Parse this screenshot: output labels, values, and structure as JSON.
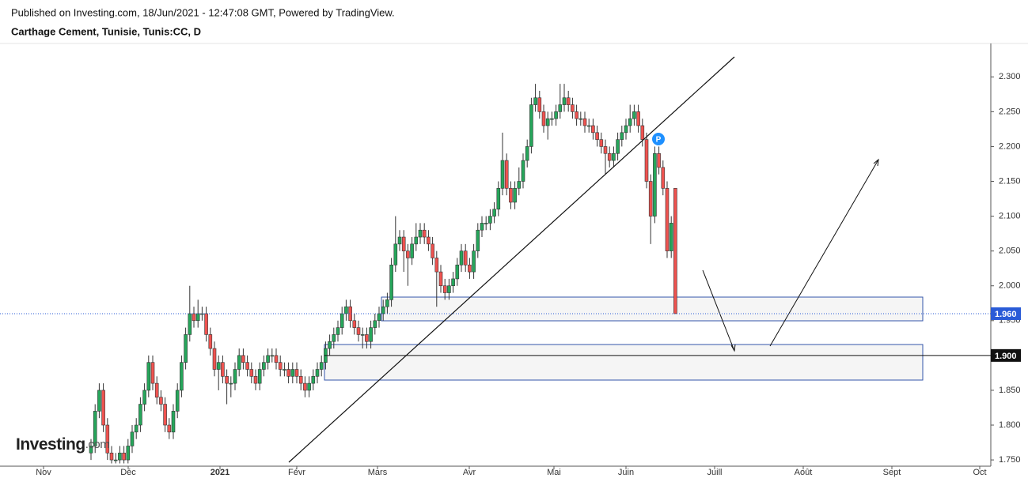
{
  "chart_data": {
    "type": "candlestick",
    "header": "Published on Investing.com, 18/Jun/2021 - 12:47:08 GMT, Powered by TradingView.",
    "title": "Carthage Cement, Tunisie, Tunis:CC, D",
    "logo": "Investing",
    "logo_suffix": ".com",
    "marker_label": "P",
    "xtick_labels": [
      "Nov",
      "Déc",
      "2021",
      "Févr",
      "Mars",
      "Avr",
      "Mai",
      "Juin",
      "Juill",
      "Août",
      "Sept",
      "Oct"
    ],
    "ylim": [
      1.741,
      2.348
    ],
    "yticks": [
      {
        "value": 1.75,
        "label": "1.750"
      },
      {
        "value": 1.8,
        "label": "1.800"
      },
      {
        "value": 1.85,
        "label": "1.850"
      },
      {
        "value": 1.9,
        "label": "1.900"
      },
      {
        "value": 1.95,
        "label": "1.950"
      },
      {
        "value": 2.0,
        "label": "2.000"
      },
      {
        "value": 2.05,
        "label": "2.050"
      },
      {
        "value": 2.1,
        "label": "2.100"
      },
      {
        "value": 2.15,
        "label": "2.150"
      },
      {
        "value": 2.2,
        "label": "2.200"
      },
      {
        "value": 2.25,
        "label": "2.250"
      },
      {
        "value": 2.3,
        "label": "2.300"
      }
    ],
    "last_price": {
      "value": 1.96,
      "label": "1.960"
    },
    "hline": {
      "value": 1.9,
      "label": "1.900"
    },
    "up_color": "#26a65b",
    "down_color": "#ef5350",
    "open": [
      1.76,
      1.77,
      1.82,
      1.85,
      1.8,
      1.76,
      1.75,
      1.75,
      1.76,
      1.75,
      1.77,
      1.79,
      1.8,
      1.83,
      1.85,
      1.89,
      1.86,
      1.84,
      1.83,
      1.8,
      1.79,
      1.82,
      1.85,
      1.89,
      1.93,
      1.96,
      1.95,
      1.96,
      1.96,
      1.93,
      1.91,
      1.88,
      1.89,
      1.87,
      1.86,
      1.86,
      1.88,
      1.9,
      1.89,
      1.88,
      1.87,
      1.86,
      1.88,
      1.89,
      1.9,
      1.9,
      1.89,
      1.88,
      1.88,
      1.87,
      1.88,
      1.87,
      1.86,
      1.85,
      1.86,
      1.87,
      1.88,
      1.89,
      1.91,
      1.92,
      1.93,
      1.94,
      1.96,
      1.97,
      1.95,
      1.94,
      1.93,
      1.93,
      1.92,
      1.94,
      1.95,
      1.96,
      1.97,
      1.98,
      2.03,
      2.06,
      2.07,
      2.05,
      2.04,
      2.06,
      2.07,
      2.08,
      2.07,
      2.06,
      2.04,
      2.02,
      2.0,
      1.99,
      2.0,
      2.01,
      2.03,
      2.05,
      2.03,
      2.02,
      2.05,
      2.08,
      2.09,
      2.09,
      2.1,
      2.11,
      2.14,
      2.18,
      2.14,
      2.12,
      2.14,
      2.15,
      2.18,
      2.2,
      2.26,
      2.27,
      2.25,
      2.23,
      2.24,
      2.24,
      2.25,
      2.26,
      2.27,
      2.26,
      2.25,
      2.24,
      2.24,
      2.23,
      2.23,
      2.22,
      2.21,
      2.2,
      2.19,
      2.18,
      2.19,
      2.21,
      2.22,
      2.23,
      2.24,
      2.25,
      2.23,
      2.21,
      2.15,
      2.1,
      2.19,
      2.17,
      2.14,
      2.05,
      2.14
    ],
    "high": [
      1.78,
      1.83,
      1.86,
      1.86,
      1.81,
      1.77,
      1.76,
      1.77,
      1.77,
      1.78,
      1.8,
      1.81,
      1.84,
      1.86,
      1.9,
      1.9,
      1.87,
      1.85,
      1.84,
      1.81,
      1.83,
      1.86,
      1.9,
      1.94,
      2.0,
      1.97,
      1.98,
      1.97,
      1.97,
      1.94,
      1.92,
      1.9,
      1.9,
      1.88,
      1.87,
      1.89,
      1.91,
      1.91,
      1.9,
      1.89,
      1.88,
      1.89,
      1.9,
      1.91,
      1.91,
      1.91,
      1.9,
      1.89,
      1.89,
      1.89,
      1.89,
      1.88,
      1.87,
      1.87,
      1.88,
      1.89,
      1.9,
      1.92,
      1.93,
      1.94,
      1.95,
      1.97,
      1.98,
      1.98,
      1.96,
      1.95,
      1.94,
      1.94,
      1.95,
      1.96,
      1.97,
      1.98,
      1.99,
      2.04,
      2.1,
      2.08,
      2.08,
      2.06,
      2.07,
      2.09,
      2.09,
      2.09,
      2.08,
      2.07,
      2.05,
      2.03,
      2.01,
      2.01,
      2.02,
      2.04,
      2.06,
      2.06,
      2.04,
      2.06,
      2.09,
      2.1,
      2.1,
      2.11,
      2.12,
      2.15,
      2.22,
      2.19,
      2.15,
      2.15,
      2.17,
      2.19,
      2.21,
      2.27,
      2.29,
      2.28,
      2.26,
      2.25,
      2.25,
      2.26,
      2.29,
      2.29,
      2.28,
      2.27,
      2.26,
      2.25,
      2.25,
      2.24,
      2.24,
      2.23,
      2.22,
      2.21,
      2.2,
      2.2,
      2.22,
      2.23,
      2.24,
      2.26,
      2.26,
      2.26,
      2.24,
      2.22,
      2.16,
      2.2,
      2.2,
      2.18,
      2.15,
      2.1,
      2.14
    ],
    "low": [
      1.75,
      1.76,
      1.81,
      1.79,
      1.75,
      1.745,
      1.745,
      1.745,
      1.745,
      1.745,
      1.76,
      1.78,
      1.79,
      1.82,
      1.84,
      1.85,
      1.83,
      1.82,
      1.79,
      1.78,
      1.78,
      1.81,
      1.84,
      1.88,
      1.92,
      1.94,
      1.94,
      1.95,
      1.92,
      1.9,
      1.87,
      1.85,
      1.86,
      1.83,
      1.84,
      1.85,
      1.87,
      1.88,
      1.87,
      1.86,
      1.85,
      1.85,
      1.87,
      1.88,
      1.89,
      1.88,
      1.87,
      1.87,
      1.86,
      1.86,
      1.86,
      1.85,
      1.84,
      1.84,
      1.85,
      1.86,
      1.87,
      1.88,
      1.9,
      1.91,
      1.92,
      1.93,
      1.95,
      1.94,
      1.93,
      1.92,
      1.91,
      1.91,
      1.91,
      1.93,
      1.94,
      1.95,
      1.96,
      1.97,
      2.02,
      2.05,
      2.02,
      2.0,
      2.03,
      2.05,
      2.06,
      2.06,
      2.05,
      2.03,
      1.97,
      1.99,
      1.98,
      1.98,
      1.99,
      2.0,
      2.02,
      2.02,
      2.01,
      2.01,
      2.04,
      2.07,
      2.08,
      2.08,
      2.09,
      2.1,
      2.13,
      2.13,
      2.11,
      2.11,
      2.13,
      2.14,
      2.17,
      2.19,
      2.25,
      2.24,
      2.22,
      2.21,
      2.23,
      2.23,
      2.24,
      2.25,
      2.25,
      2.24,
      2.23,
      2.23,
      2.22,
      2.22,
      2.21,
      2.2,
      2.19,
      2.16,
      2.17,
      2.17,
      2.18,
      2.2,
      2.21,
      2.22,
      2.23,
      2.22,
      2.2,
      2.14,
      2.06,
      2.09,
      2.16,
      2.13,
      2.04,
      2.04,
      1.96
    ],
    "close": [
      1.77,
      1.82,
      1.85,
      1.8,
      1.76,
      1.75,
      1.75,
      1.76,
      1.75,
      1.77,
      1.79,
      1.8,
      1.83,
      1.85,
      1.89,
      1.86,
      1.84,
      1.83,
      1.8,
      1.79,
      1.82,
      1.85,
      1.89,
      1.93,
      1.96,
      1.95,
      1.96,
      1.96,
      1.93,
      1.91,
      1.88,
      1.89,
      1.87,
      1.86,
      1.86,
      1.88,
      1.9,
      1.89,
      1.88,
      1.87,
      1.86,
      1.88,
      1.89,
      1.9,
      1.9,
      1.89,
      1.88,
      1.88,
      1.87,
      1.88,
      1.87,
      1.86,
      1.85,
      1.86,
      1.87,
      1.88,
      1.89,
      1.91,
      1.92,
      1.93,
      1.94,
      1.96,
      1.97,
      1.95,
      1.94,
      1.93,
      1.93,
      1.92,
      1.94,
      1.95,
      1.96,
      1.97,
      1.98,
      2.03,
      2.06,
      2.07,
      2.05,
      2.04,
      2.06,
      2.07,
      2.08,
      2.07,
      2.06,
      2.04,
      2.02,
      2.0,
      1.99,
      2.0,
      2.01,
      2.03,
      2.05,
      2.03,
      2.02,
      2.05,
      2.08,
      2.09,
      2.09,
      2.1,
      2.11,
      2.14,
      2.18,
      2.14,
      2.12,
      2.14,
      2.15,
      2.18,
      2.2,
      2.26,
      2.27,
      2.25,
      2.23,
      2.24,
      2.24,
      2.25,
      2.26,
      2.27,
      2.26,
      2.25,
      2.24,
      2.24,
      2.23,
      2.23,
      2.22,
      2.21,
      2.2,
      2.19,
      2.18,
      2.19,
      2.21,
      2.22,
      2.23,
      2.24,
      2.25,
      2.23,
      2.21,
      2.15,
      2.1,
      2.19,
      2.17,
      2.14,
      2.05,
      2.09,
      1.96
    ]
  }
}
